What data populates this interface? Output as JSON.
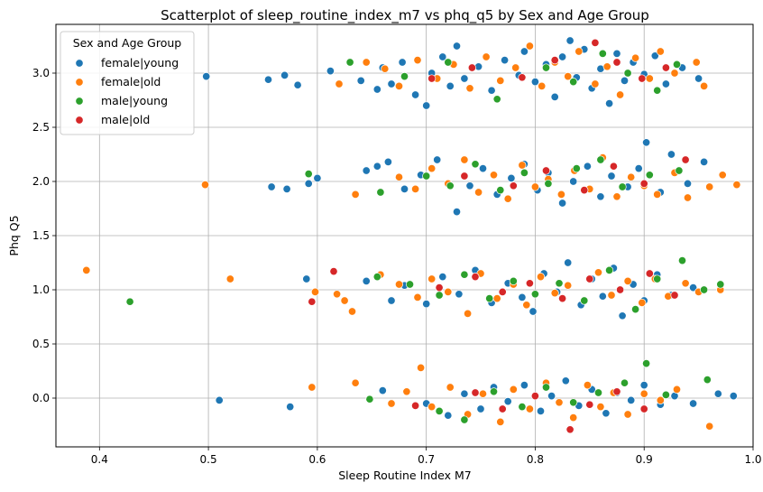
{
  "chart_data": {
    "type": "scatter",
    "title": "Scatterplot of sleep_routine_index_m7 vs phq_q5 by Sex and Age Group",
    "xlabel": "Sleep Routine Index M7",
    "ylabel": "Phq Q5",
    "xlim": [
      0.36,
      1.0
    ],
    "ylim": [
      -0.45,
      3.45
    ],
    "xticks": [
      "0.4",
      "0.5",
      "0.6",
      "0.7",
      "0.8",
      "0.9",
      "1.0"
    ],
    "xtick_values": [
      0.4,
      0.5,
      0.6,
      0.7,
      0.8,
      0.9,
      1.0
    ],
    "yticks": [
      "0.0",
      "0.5",
      "1.0",
      "1.5",
      "2.0",
      "2.5",
      "3.0"
    ],
    "ytick_values": [
      0.0,
      0.5,
      1.0,
      1.5,
      2.0,
      2.5,
      3.0
    ],
    "grid": true,
    "legend": {
      "title": "Sex and Age Group",
      "placement": "top-left"
    },
    "series": [
      {
        "name": "female|young",
        "color": "#1f77b4",
        "points": [
          [
            0.498,
            2.97
          ],
          [
            0.555,
            2.94
          ],
          [
            0.57,
            2.98
          ],
          [
            0.582,
            2.89
          ],
          [
            0.612,
            3.02
          ],
          [
            0.64,
            2.93
          ],
          [
            0.655,
            2.85
          ],
          [
            0.66,
            3.05
          ],
          [
            0.668,
            2.9
          ],
          [
            0.678,
            3.1
          ],
          [
            0.69,
            2.8
          ],
          [
            0.7,
            2.7
          ],
          [
            0.705,
            3.0
          ],
          [
            0.715,
            3.15
          ],
          [
            0.722,
            2.88
          ],
          [
            0.728,
            3.25
          ],
          [
            0.735,
            2.95
          ],
          [
            0.748,
            3.06
          ],
          [
            0.76,
            2.84
          ],
          [
            0.772,
            3.12
          ],
          [
            0.785,
            2.98
          ],
          [
            0.79,
            3.2
          ],
          [
            0.8,
            2.92
          ],
          [
            0.81,
            3.08
          ],
          [
            0.818,
            2.78
          ],
          [
            0.825,
            3.15
          ],
          [
            0.832,
            3.3
          ],
          [
            0.838,
            2.96
          ],
          [
            0.845,
            3.22
          ],
          [
            0.852,
            2.86
          ],
          [
            0.86,
            3.04
          ],
          [
            0.868,
            2.72
          ],
          [
            0.875,
            3.18
          ],
          [
            0.882,
            2.93
          ],
          [
            0.89,
            3.1
          ],
          [
            0.9,
            2.99
          ],
          [
            0.91,
            3.16
          ],
          [
            0.92,
            2.9
          ],
          [
            0.935,
            3.05
          ],
          [
            0.95,
            2.95
          ],
          [
            0.558,
            1.95
          ],
          [
            0.572,
            1.93
          ],
          [
            0.592,
            1.98
          ],
          [
            0.6,
            2.03
          ],
          [
            0.645,
            2.1
          ],
          [
            0.655,
            2.14
          ],
          [
            0.665,
            2.18
          ],
          [
            0.68,
            1.93
          ],
          [
            0.695,
            2.06
          ],
          [
            0.71,
            2.2
          ],
          [
            0.728,
            1.72
          ],
          [
            0.74,
            1.96
          ],
          [
            0.752,
            2.12
          ],
          [
            0.765,
            1.88
          ],
          [
            0.778,
            2.03
          ],
          [
            0.79,
            2.16
          ],
          [
            0.802,
            1.92
          ],
          [
            0.812,
            2.08
          ],
          [
            0.825,
            1.8
          ],
          [
            0.835,
            2.0
          ],
          [
            0.848,
            2.14
          ],
          [
            0.86,
            1.86
          ],
          [
            0.87,
            2.05
          ],
          [
            0.885,
            1.95
          ],
          [
            0.895,
            2.12
          ],
          [
            0.902,
            2.36
          ],
          [
            0.915,
            1.9
          ],
          [
            0.925,
            2.25
          ],
          [
            0.94,
            1.98
          ],
          [
            0.955,
            2.18
          ],
          [
            0.59,
            1.1
          ],
          [
            0.645,
            1.08
          ],
          [
            0.668,
            0.9
          ],
          [
            0.68,
            1.04
          ],
          [
            0.7,
            0.87
          ],
          [
            0.715,
            1.12
          ],
          [
            0.73,
            0.96
          ],
          [
            0.745,
            1.18
          ],
          [
            0.76,
            0.88
          ],
          [
            0.775,
            1.06
          ],
          [
            0.788,
            0.93
          ],
          [
            0.798,
            0.8
          ],
          [
            0.808,
            1.15
          ],
          [
            0.82,
            0.98
          ],
          [
            0.83,
            1.25
          ],
          [
            0.842,
            0.86
          ],
          [
            0.852,
            1.1
          ],
          [
            0.862,
            0.94
          ],
          [
            0.872,
            1.2
          ],
          [
            0.88,
            0.76
          ],
          [
            0.89,
            1.05
          ],
          [
            0.9,
            0.9
          ],
          [
            0.912,
            1.14
          ],
          [
            0.925,
            0.95
          ],
          [
            0.945,
            1.02
          ],
          [
            0.51,
            -0.02
          ],
          [
            0.575,
            -0.08
          ],
          [
            0.66,
            0.07
          ],
          [
            0.7,
            -0.05
          ],
          [
            0.72,
            -0.16
          ],
          [
            0.735,
            0.04
          ],
          [
            0.75,
            -0.1
          ],
          [
            0.762,
            0.1
          ],
          [
            0.775,
            -0.03
          ],
          [
            0.79,
            0.12
          ],
          [
            0.805,
            -0.12
          ],
          [
            0.815,
            0.02
          ],
          [
            0.828,
            0.16
          ],
          [
            0.84,
            -0.07
          ],
          [
            0.852,
            0.08
          ],
          [
            0.865,
            -0.14
          ],
          [
            0.875,
            0.05
          ],
          [
            0.888,
            -0.02
          ],
          [
            0.9,
            0.12
          ],
          [
            0.915,
            -0.06
          ],
          [
            0.928,
            0.02
          ],
          [
            0.945,
            -0.05
          ],
          [
            0.968,
            0.04
          ],
          [
            0.982,
            0.02
          ]
        ]
      },
      {
        "name": "female|old",
        "color": "#ff7f0e",
        "points": [
          [
            0.62,
            2.9
          ],
          [
            0.645,
            3.1
          ],
          [
            0.662,
            3.04
          ],
          [
            0.675,
            2.88
          ],
          [
            0.692,
            3.12
          ],
          [
            0.71,
            2.95
          ],
          [
            0.725,
            3.08
          ],
          [
            0.74,
            2.86
          ],
          [
            0.755,
            3.15
          ],
          [
            0.768,
            2.93
          ],
          [
            0.782,
            3.05
          ],
          [
            0.795,
            3.25
          ],
          [
            0.806,
            2.88
          ],
          [
            0.818,
            3.1
          ],
          [
            0.83,
            2.97
          ],
          [
            0.84,
            3.2
          ],
          [
            0.855,
            2.9
          ],
          [
            0.866,
            3.06
          ],
          [
            0.878,
            2.8
          ],
          [
            0.892,
            3.14
          ],
          [
            0.905,
            2.95
          ],
          [
            0.915,
            3.2
          ],
          [
            0.928,
            3.0
          ],
          [
            0.948,
            3.1
          ],
          [
            0.955,
            2.88
          ],
          [
            0.497,
            1.97
          ],
          [
            0.635,
            1.88
          ],
          [
            0.675,
            2.04
          ],
          [
            0.69,
            1.93
          ],
          [
            0.705,
            2.12
          ],
          [
            0.72,
            1.98
          ],
          [
            0.735,
            2.2
          ],
          [
            0.748,
            1.9
          ],
          [
            0.762,
            2.06
          ],
          [
            0.775,
            1.84
          ],
          [
            0.788,
            2.15
          ],
          [
            0.8,
            1.95
          ],
          [
            0.812,
            2.02
          ],
          [
            0.824,
            1.88
          ],
          [
            0.836,
            2.1
          ],
          [
            0.85,
            1.93
          ],
          [
            0.862,
            2.22
          ],
          [
            0.875,
            1.86
          ],
          [
            0.888,
            2.04
          ],
          [
            0.9,
            1.96
          ],
          [
            0.912,
            1.88
          ],
          [
            0.928,
            2.08
          ],
          [
            0.94,
            1.85
          ],
          [
            0.96,
            1.95
          ],
          [
            0.972,
            2.06
          ],
          [
            0.985,
            1.97
          ],
          [
            0.388,
            1.18
          ],
          [
            0.52,
            1.1
          ],
          [
            0.598,
            0.98
          ],
          [
            0.618,
            0.96
          ],
          [
            0.625,
            0.9
          ],
          [
            0.632,
            0.8
          ],
          [
            0.658,
            1.14
          ],
          [
            0.675,
            1.05
          ],
          [
            0.692,
            0.93
          ],
          [
            0.705,
            1.1
          ],
          [
            0.72,
            0.98
          ],
          [
            0.738,
            0.78
          ],
          [
            0.75,
            1.15
          ],
          [
            0.765,
            0.92
          ],
          [
            0.78,
            1.05
          ],
          [
            0.792,
            0.86
          ],
          [
            0.805,
            1.12
          ],
          [
            0.818,
            0.97
          ],
          [
            0.83,
            1.04
          ],
          [
            0.845,
            0.9
          ],
          [
            0.858,
            1.16
          ],
          [
            0.87,
            0.95
          ],
          [
            0.885,
            1.08
          ],
          [
            0.898,
            0.88
          ],
          [
            0.91,
            1.1
          ],
          [
            0.922,
            0.94
          ],
          [
            0.938,
            1.06
          ],
          [
            0.95,
            0.98
          ],
          [
            0.97,
            1.0
          ],
          [
            0.595,
            0.1
          ],
          [
            0.635,
            0.14
          ],
          [
            0.668,
            -0.05
          ],
          [
            0.682,
            0.06
          ],
          [
            0.695,
            0.28
          ],
          [
            0.705,
            -0.08
          ],
          [
            0.722,
            0.1
          ],
          [
            0.738,
            -0.15
          ],
          [
            0.752,
            0.04
          ],
          [
            0.768,
            -0.22
          ],
          [
            0.78,
            0.08
          ],
          [
            0.795,
            -0.1
          ],
          [
            0.81,
            0.14
          ],
          [
            0.822,
            -0.04
          ],
          [
            0.835,
            -0.18
          ],
          [
            0.848,
            0.12
          ],
          [
            0.86,
            -0.08
          ],
          [
            0.872,
            0.05
          ],
          [
            0.885,
            -0.15
          ],
          [
            0.9,
            0.04
          ],
          [
            0.915,
            -0.02
          ],
          [
            0.93,
            0.08
          ],
          [
            0.96,
            -0.26
          ]
        ]
      },
      {
        "name": "male|young",
        "color": "#2ca02c",
        "points": [
          [
            0.63,
            3.1
          ],
          [
            0.68,
            2.97
          ],
          [
            0.72,
            3.1
          ],
          [
            0.765,
            2.76
          ],
          [
            0.81,
            3.05
          ],
          [
            0.835,
            2.92
          ],
          [
            0.862,
            3.18
          ],
          [
            0.885,
            3.0
          ],
          [
            0.912,
            2.84
          ],
          [
            0.93,
            3.08
          ],
          [
            0.592,
            2.07
          ],
          [
            0.658,
            1.9
          ],
          [
            0.7,
            2.05
          ],
          [
            0.722,
            1.96
          ],
          [
            0.745,
            2.16
          ],
          [
            0.768,
            1.92
          ],
          [
            0.79,
            2.08
          ],
          [
            0.812,
            1.98
          ],
          [
            0.838,
            2.12
          ],
          [
            0.86,
            2.2
          ],
          [
            0.88,
            1.95
          ],
          [
            0.905,
            2.06
          ],
          [
            0.932,
            2.1
          ],
          [
            0.428,
            0.89
          ],
          [
            0.655,
            1.12
          ],
          [
            0.685,
            1.05
          ],
          [
            0.712,
            0.95
          ],
          [
            0.735,
            1.14
          ],
          [
            0.758,
            0.92
          ],
          [
            0.78,
            1.08
          ],
          [
            0.8,
            0.96
          ],
          [
            0.822,
            1.06
          ],
          [
            0.845,
            0.9
          ],
          [
            0.868,
            1.18
          ],
          [
            0.892,
            0.82
          ],
          [
            0.912,
            1.1
          ],
          [
            0.935,
            1.27
          ],
          [
            0.955,
            1.0
          ],
          [
            0.97,
            1.05
          ],
          [
            0.648,
            -0.01
          ],
          [
            0.712,
            -0.12
          ],
          [
            0.735,
            -0.2
          ],
          [
            0.762,
            0.06
          ],
          [
            0.788,
            -0.08
          ],
          [
            0.81,
            0.1
          ],
          [
            0.835,
            -0.04
          ],
          [
            0.858,
            0.05
          ],
          [
            0.882,
            0.14
          ],
          [
            0.902,
            0.32
          ],
          [
            0.92,
            0.03
          ],
          [
            0.958,
            0.17
          ]
        ]
      },
      {
        "name": "male|old",
        "color": "#d62728",
        "points": [
          [
            0.705,
            2.95
          ],
          [
            0.742,
            3.05
          ],
          [
            0.788,
            2.96
          ],
          [
            0.818,
            3.12
          ],
          [
            0.855,
            3.28
          ],
          [
            0.875,
            3.1
          ],
          [
            0.898,
            2.95
          ],
          [
            0.92,
            3.05
          ],
          [
            0.735,
            2.05
          ],
          [
            0.78,
            1.96
          ],
          [
            0.81,
            2.1
          ],
          [
            0.845,
            1.92
          ],
          [
            0.872,
            2.14
          ],
          [
            0.9,
            1.98
          ],
          [
            0.938,
            2.2
          ],
          [
            0.595,
            0.89
          ],
          [
            0.615,
            1.17
          ],
          [
            0.712,
            1.02
          ],
          [
            0.745,
            1.12
          ],
          [
            0.77,
            0.98
          ],
          [
            0.795,
            1.06
          ],
          [
            0.825,
            0.92
          ],
          [
            0.85,
            1.1
          ],
          [
            0.878,
            1.0
          ],
          [
            0.905,
            1.15
          ],
          [
            0.928,
            0.95
          ],
          [
            0.69,
            -0.07
          ],
          [
            0.745,
            0.05
          ],
          [
            0.77,
            -0.1
          ],
          [
            0.8,
            0.02
          ],
          [
            0.832,
            -0.29
          ],
          [
            0.85,
            -0.06
          ],
          [
            0.875,
            0.06
          ],
          [
            0.9,
            -0.1
          ]
        ]
      }
    ]
  }
}
